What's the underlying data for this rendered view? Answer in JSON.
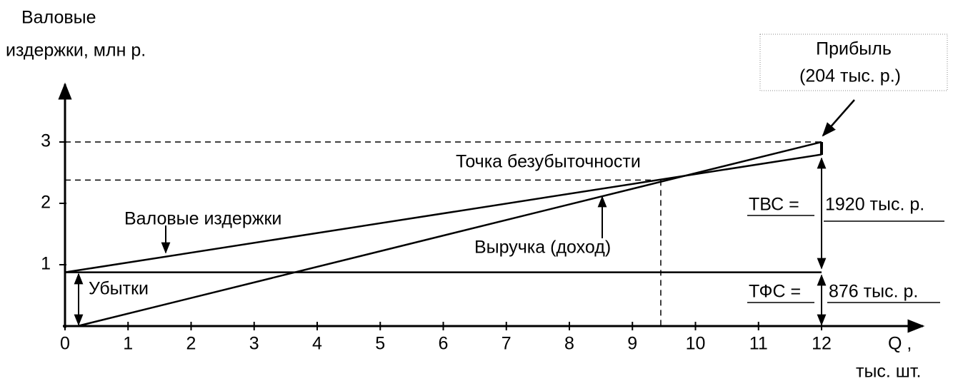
{
  "chart_data": {
    "type": "line",
    "ylabel": [
      "Валовые",
      "издержки, млн р."
    ],
    "xlabel": [
      "Q ,",
      "тыс. шт."
    ],
    "xlim": [
      0,
      13.6
    ],
    "ylim": [
      0,
      4
    ],
    "xticks": [
      0,
      1,
      2,
      3,
      4,
      5,
      6,
      7,
      8,
      9,
      10,
      11,
      12
    ],
    "yticks": [
      1,
      2,
      3
    ],
    "color": "#000000",
    "series": [
      {
        "name": "Валовые издержки",
        "x": [
          0,
          12
        ],
        "values": [
          0.876,
          2.796
        ]
      },
      {
        "name": "Выручка (доход)",
        "x": [
          0.2,
          12
        ],
        "values": [
          0,
          3
        ]
      },
      {
        "x": [
          0,
          12
        ],
        "values": [
          0.876,
          0.876
        ]
      }
    ],
    "breakeven": {
      "label": "Точка безубыточности",
      "x": 9.45,
      "y": 2.38
    },
    "loss_label": "Убытки",
    "profit_label": [
      "Прибыль",
      "(204 тыс. р.)"
    ],
    "tvc_label": [
      "ТВС =",
      "1920 тыс. р."
    ],
    "tfc_label": [
      "ТФС =",
      "876 тыс. р."
    ]
  }
}
